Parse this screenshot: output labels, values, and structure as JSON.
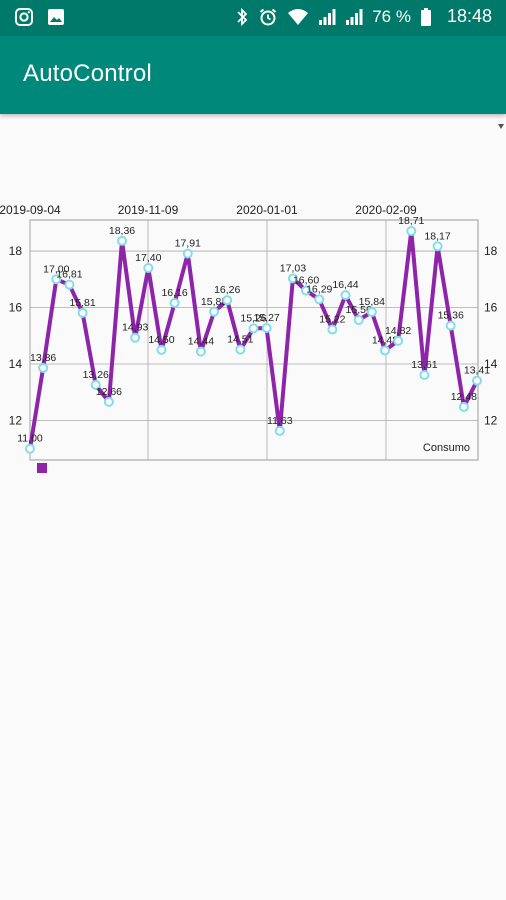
{
  "status_bar": {
    "left_icons": [
      "instagram-icon",
      "gallery-icon"
    ],
    "right_icons": [
      "bluetooth-icon",
      "alarm-icon",
      "wifi-icon",
      "signal-icon",
      "signal-icon",
      "battery-icon"
    ],
    "battery": "76 %",
    "time": "18:48"
  },
  "app_bar": {
    "title": "AutoControl",
    "color": "#00897b",
    "status_color": "#00796b"
  },
  "chart_data": {
    "type": "line",
    "title": "",
    "xlabel": "",
    "ylabel": "",
    "x_tick_labels": [
      "2019-09-04",
      "2019-11-09",
      "2020-01-01",
      "2020-02-09"
    ],
    "y_ticks": [
      12,
      14,
      16,
      18
    ],
    "ylim": [
      10.6,
      19.1
    ],
    "grid": true,
    "legend_position": "bottom-left",
    "series": [
      {
        "name": "Consumo",
        "color": "#8e24aa",
        "marker_color": "#80deea",
        "labels": [
          "11,00",
          "13,86",
          "17,00",
          "16,81",
          "15,81",
          "13,26",
          "12,66",
          "18,36",
          "14,93",
          "17,40",
          "14,50",
          "16,16",
          "17,91",
          "14,44",
          "15,85",
          "16,26",
          "14,51",
          "15,26",
          "15,27",
          "11,63",
          "17,03",
          "16,60",
          "16,29",
          "15,22",
          "16,44",
          "15,56",
          "15,84",
          "14,48",
          "14,82",
          "18,71",
          "13,61",
          "18,17",
          "15,36",
          "12,48",
          "13,41"
        ],
        "values": [
          11.0,
          13.86,
          17.0,
          16.81,
          15.81,
          13.26,
          12.66,
          18.36,
          14.93,
          17.4,
          14.5,
          16.16,
          17.91,
          14.44,
          15.85,
          16.26,
          14.51,
          15.26,
          15.27,
          11.63,
          17.03,
          16.6,
          16.29,
          15.22,
          16.44,
          15.56,
          15.84,
          14.48,
          14.82,
          18.71,
          13.61,
          18.17,
          15.36,
          12.48,
          13.41
        ]
      }
    ]
  }
}
